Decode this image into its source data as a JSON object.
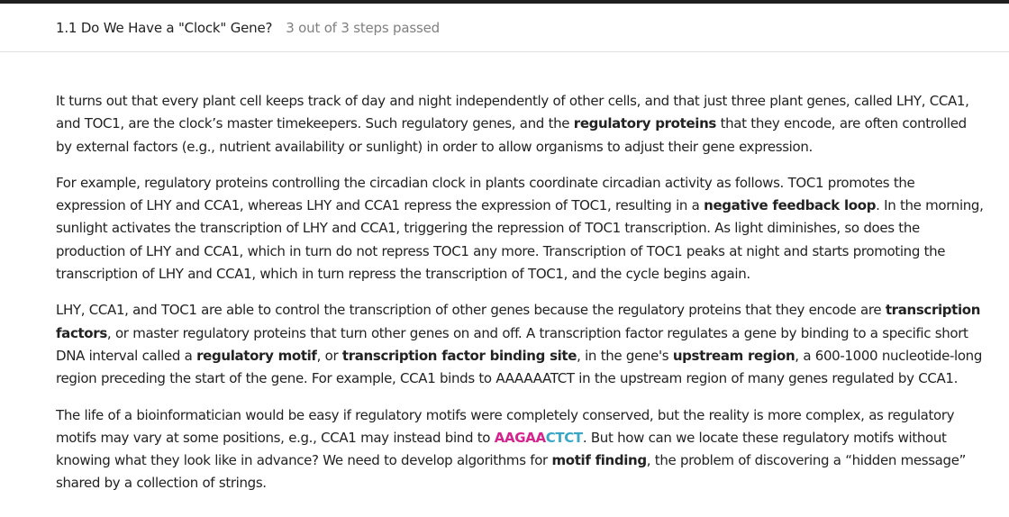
{
  "header": {
    "title": "1.1 Do We Have a \"Clock\" Gene?",
    "status": "3 out of 3 steps passed"
  },
  "paragraphs": {
    "p1": {
      "t1": "It turns out that every plant cell keeps track of day and night independently of other cells, and that just three plant genes, called LHY, CCA1, and TOC1, are the clock’s master timekeepers. Such regulatory genes, and the ",
      "b1": "regulatory proteins",
      "t2": " that they encode, are often controlled by external factors (e.g., nutrient availability or sunlight) in order to allow organisms to adjust their gene expression."
    },
    "p2": {
      "t1": "For example, regulatory proteins controlling the circadian clock in plants coordinate circadian activity as follows. TOC1 promotes the expression of LHY and CCA1, whereas LHY and CCA1 repress the expression of TOC1, resulting in a ",
      "b1": "negative feedback loop",
      "t2": ". In the morning, sunlight activates the transcription of LHY and CCA1, triggering the repression of TOC1 transcription. As light diminishes, so does the production of LHY and CCA1, which in turn do not repress TOC1 any more. Transcription of TOC1 peaks at night and starts promoting the transcription of LHY and CCA1, which in turn repress the transcription of TOC1, and the cycle begins again."
    },
    "p3": {
      "t1": "LHY, CCA1, and TOC1 are able to control the transcription of other genes because the regulatory proteins that they encode are ",
      "b1": "transcription factors",
      "t2": ", or master regulatory proteins that turn other genes on and off. A transcription factor regulates a gene by binding to a specific short DNA interval called a ",
      "b2": "regulatory motif",
      "t3": ", or ",
      "b3": "transcription factor binding site",
      "t4": ", in the gene's ",
      "b4": "upstream region",
      "t5": ", a 600-1000 nucleotide-long region preceding the start of the gene. For example, CCA1 binds to AAAAAATCT in the upstream region of many genes regulated by CCA1."
    },
    "p4": {
      "t1": "The life of a bioinformatician would be easy if regulatory motifs were completely conserved, but the reality is more complex, as regulatory motifs may vary at some positions, e.g., CCA1 may instead bind to ",
      "dna1": "AAGAA",
      "dna2": "CTCT",
      "t2": ". But how can we locate these regulatory motifs without knowing what they look like in advance? We need to develop algorithms for ",
      "b1": "motif finding",
      "t3": ", the problem of discovering a “hidden message” shared by a collection of strings."
    }
  }
}
